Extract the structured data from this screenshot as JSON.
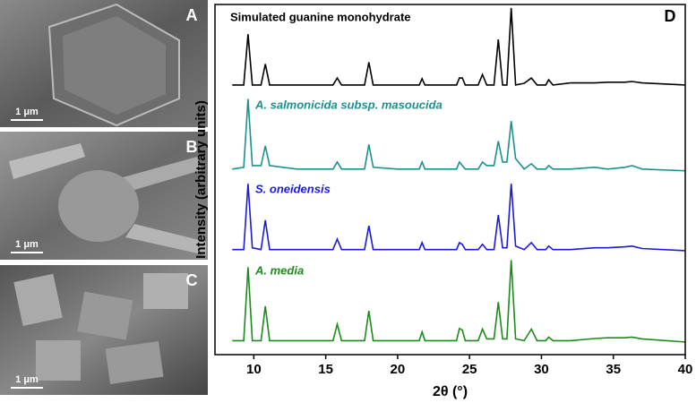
{
  "panels": [
    {
      "label": "A",
      "scale_bar": "1 μm"
    },
    {
      "label": "B",
      "scale_bar": "1 μm"
    },
    {
      "label": "C",
      "scale_bar": "1 μm"
    }
  ],
  "chart_data": {
    "type": "line",
    "panel_label": "D",
    "x_label": "2θ (°)",
    "y_label": "Intensity (arbitrary units)",
    "xlim": [
      7.3,
      40
    ],
    "xticks": [
      10,
      15,
      20,
      25,
      30,
      35,
      40
    ],
    "ylim": [
      0,
      100
    ],
    "x": [
      8.5,
      9.3,
      9.6,
      9.9,
      10.5,
      10.8,
      11.1,
      13,
      15.5,
      15.8,
      16.1,
      17.7,
      18.0,
      18.3,
      20,
      21.5,
      21.7,
      21.9,
      23,
      24.1,
      24.3,
      24.5,
      24.7,
      25.6,
      25.9,
      26.2,
      26.7,
      27.0,
      27.3,
      27.6,
      27.9,
      28.2,
      28.8,
      29.3,
      29.7,
      30.3,
      30.5,
      30.8,
      32,
      33.7,
      34.6,
      35.8,
      36.3,
      37,
      40
    ],
    "series": [
      {
        "name": "Simulated guanine monohydrate",
        "color": "#000000",
        "label_color": "#000000",
        "label_italic": false,
        "values": [
          77,
          77,
          91.5,
          77,
          77,
          83,
          77,
          77,
          77,
          79,
          77,
          77,
          83.5,
          77,
          77,
          77,
          78.8,
          77,
          77,
          77,
          79,
          79,
          77,
          77,
          80,
          77,
          77,
          90,
          77,
          77,
          99,
          77,
          77.5,
          79,
          77,
          77,
          78.5,
          77,
          77.6,
          77.6,
          77.8,
          77.8,
          78,
          77.6,
          77
        ]
      },
      {
        "name": "A. salmonicida subsp. masoucida",
        "color": "#1a9090",
        "label_color": "#1a9090",
        "label_italic": true,
        "values": [
          53,
          53.5,
          73,
          54,
          54,
          59.6,
          54,
          53,
          53,
          55,
          53,
          53,
          60,
          53.5,
          53,
          53,
          55,
          53,
          53,
          53,
          55,
          54,
          53,
          53,
          55,
          54,
          54,
          61,
          55,
          55,
          66.7,
          56,
          53,
          54.5,
          53,
          53,
          54,
          53,
          53,
          53.5,
          53,
          53.5,
          54,
          53,
          52.5
        ]
      },
      {
        "name": "S. oneidensis",
        "color": "#1a1adc",
        "label_color": "#1a1adc",
        "label_italic": true,
        "values": [
          30,
          30,
          48.8,
          30.5,
          30,
          38.4,
          30,
          30,
          30,
          33,
          30,
          30,
          36.8,
          30,
          30,
          30,
          32,
          30,
          30,
          30,
          32,
          31.5,
          30,
          30,
          31.5,
          30,
          30,
          39.9,
          30.5,
          30.5,
          48.8,
          31,
          30,
          32,
          30,
          30,
          31,
          30,
          30,
          30.5,
          30.5,
          30.8,
          31,
          30.3,
          29.7
        ]
      },
      {
        "name": "A. media",
        "color": "#1a8c1a",
        "label_color": "#1a8c1a",
        "label_italic": true,
        "values": [
          4,
          4,
          25,
          4,
          4,
          13.8,
          4,
          4,
          4,
          8.7,
          4,
          4,
          12.5,
          4,
          4,
          4,
          6.5,
          4,
          4,
          4,
          7.5,
          7,
          4,
          4,
          7.3,
          4.5,
          4.5,
          15,
          4.5,
          4.5,
          27,
          4.5,
          4,
          7.3,
          4,
          4,
          5,
          4,
          4,
          4.6,
          4.8,
          4.8,
          5,
          4.5,
          3.6
        ]
      }
    ]
  }
}
